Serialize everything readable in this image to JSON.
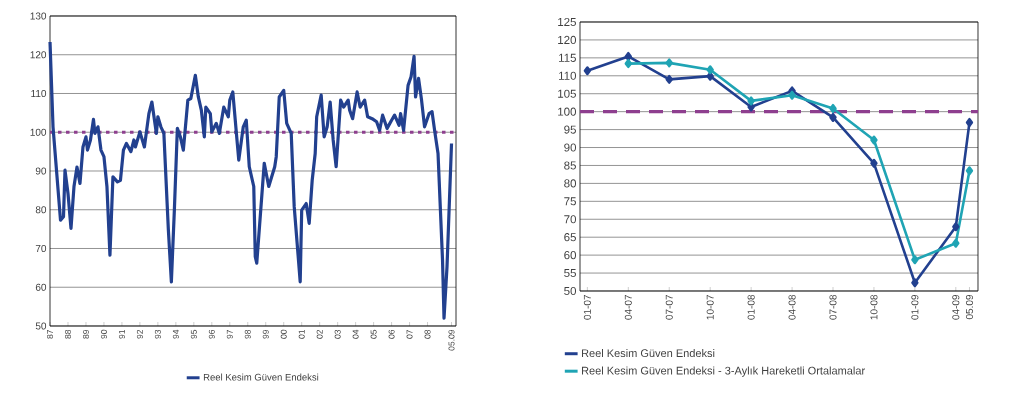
{
  "chart_data": [
    {
      "type": "line",
      "x": [
        "1987-01",
        "1987-03",
        "1987-08",
        "1987-10",
        "1987-11",
        "1988-01",
        "1988-03",
        "1988-05",
        "1988-07",
        "1988-09",
        "1988-11",
        "1989-01",
        "1989-02",
        "1989-04",
        "1989-06",
        "1989-07",
        "1989-09",
        "1989-11",
        "1990-01",
        "1990-03",
        "1990-05",
        "1990-07",
        "1990-10",
        "1990-12",
        "1991-02",
        "1991-04",
        "1991-07",
        "1991-09",
        "1991-10",
        "1992-01",
        "1992-04",
        "1992-07",
        "1992-09",
        "1992-12",
        "1993-01",
        "1993-03",
        "1993-05",
        "1993-08",
        "1993-10",
        "1993-12",
        "1994-02",
        "1994-04",
        "1994-06",
        "1994-09",
        "1994-11",
        "1995-02",
        "1995-04",
        "1995-06",
        "1995-08",
        "1995-09",
        "1995-12",
        "1996-01",
        "1996-04",
        "1996-06",
        "1996-09",
        "1996-12",
        "1997-01",
        "1997-03",
        "1997-06",
        "1997-07",
        "1997-10",
        "1997-12",
        "1998-02",
        "1998-05",
        "1998-06",
        "1998-07",
        "1998-12",
        "1999-03",
        "1999-07",
        "1999-08",
        "1999-10",
        "2000-01",
        "2000-03",
        "2000-06",
        "2000-08",
        "2000-12",
        "2001-01",
        "2001-04",
        "2001-06",
        "2001-08",
        "2001-10",
        "2001-11",
        "2002-02",
        "2002-04",
        "2002-06",
        "2002-08",
        "2002-10",
        "2002-12",
        "2003-03",
        "2003-05",
        "2003-08",
        "2003-09",
        "2003-11",
        "2004-02",
        "2004-04",
        "2004-07",
        "2004-09",
        "2004-12",
        "2005-03",
        "2005-05",
        "2005-07",
        "2005-10",
        "2006-01",
        "2006-03",
        "2006-06",
        "2006-07",
        "2006-09",
        "2006-12",
        "2007-02",
        "2007-04",
        "2007-05",
        "2007-07",
        "2007-09",
        "2007-11",
        "2008-02",
        "2008-04",
        "2008-06",
        "2008-08",
        "2008-11",
        "2008-12",
        "2009-02",
        "2009-05"
      ],
      "series": [
        {
          "name": "Reel Kesim Güven Endeksi",
          "color": "#22408f",
          "values": [
            123.3,
            101.4,
            77.3,
            78.2,
            90.2,
            84.2,
            75.2,
            86,
            91,
            86.8,
            96.2,
            98.8,
            95.4,
            98,
            103.3,
            99.7,
            101.4,
            95.4,
            93.7,
            86,
            68.3,
            88.5,
            87.2,
            87.6,
            95.4,
            97.1,
            95,
            98,
            96.2,
            100.1,
            96.2,
            104.8,
            107.8,
            99.7,
            104,
            101.4,
            99.7,
            74.8,
            61.4,
            79.9,
            101,
            98.8,
            95.4,
            108.3,
            108.7,
            114.7,
            109.1,
            105.7,
            98.8,
            106.5,
            104.8,
            100.1,
            102.3,
            99.7,
            106.5,
            104,
            108.3,
            110.4,
            97.1,
            92.8,
            101.4,
            103.1,
            91.1,
            86,
            67.9,
            66.2,
            92,
            86,
            91.1,
            93.7,
            109.1,
            110.8,
            102.3,
            99.7,
            80.8,
            61.4,
            79.9,
            81.6,
            76.5,
            87.6,
            94.5,
            104,
            109.6,
            98.8,
            101.4,
            107.8,
            98,
            91.1,
            108.3,
            106.5,
            108.3,
            105.7,
            103.5,
            110.4,
            106.5,
            108.3,
            104,
            103.5,
            102.7,
            100.5,
            104.4,
            101,
            103.1,
            104.4,
            101.8,
            104.8,
            100.5,
            112.1,
            114.3,
            119.6,
            109.1,
            113.9,
            108.3,
            101.4,
            104.8,
            105.3,
            99.7,
            94.5,
            67,
            52,
            65.3,
            97.1
          ]
        }
      ],
      "xlim": [
        "1987-01",
        "2009-08"
      ],
      "xticks": [
        {
          "value": "1987",
          "label": "87"
        },
        {
          "value": "1988",
          "label": "88"
        },
        {
          "value": "1989",
          "label": "89"
        },
        {
          "value": "1990",
          "label": "90"
        },
        {
          "value": "1991",
          "label": "91"
        },
        {
          "value": "1992",
          "label": "92"
        },
        {
          "value": "1993",
          "label": "93"
        },
        {
          "value": "1994",
          "label": "94"
        },
        {
          "value": "1995",
          "label": "95"
        },
        {
          "value": "1996",
          "label": "96"
        },
        {
          "value": "1997",
          "label": "97"
        },
        {
          "value": "1998",
          "label": "98"
        },
        {
          "value": "1999",
          "label": "99"
        },
        {
          "value": "2000",
          "label": "00"
        },
        {
          "value": "2001",
          "label": "01"
        },
        {
          "value": "2002",
          "label": "02"
        },
        {
          "value": "2003",
          "label": "03"
        },
        {
          "value": "2004",
          "label": "04"
        },
        {
          "value": "2005",
          "label": "05"
        },
        {
          "value": "2006",
          "label": "06"
        },
        {
          "value": "2007",
          "label": "07"
        },
        {
          "value": "2008",
          "label": "08"
        },
        {
          "value": "2009-05",
          "label": "05.09"
        }
      ],
      "ylim": [
        50,
        130
      ],
      "yticks": [
        50,
        60,
        70,
        80,
        90,
        100,
        110,
        120,
        130
      ],
      "grid": "y",
      "legend": "bottom",
      "marker": "none",
      "line_style": "solid",
      "ref_lines": [
        {
          "axis": "y",
          "value": 100,
          "color": "#8e3f8f",
          "line_style": "dotted"
        }
      ]
    },
    {
      "type": "line",
      "x": [
        "2007-01",
        "2007-04",
        "2007-07",
        "2007-10",
        "2008-01",
        "2008-04",
        "2008-07",
        "2008-10",
        "2009-01",
        "2009-04",
        "2009-05"
      ],
      "series": [
        {
          "name": "Reel Kesim Güven Endeksi",
          "color": "#22408f",
          "values": [
            111.4,
            115.4,
            109.0,
            109.9,
            101.3,
            105.8,
            98.4,
            85.6,
            52.3,
            67.9,
            97.0
          ]
        },
        {
          "name": "Reel Kesim Güven Endeksi - 3-Aylık Hareketli Ortalamalar",
          "color": "#1fa4b4",
          "values": [
            null,
            113.4,
            113.6,
            111.7,
            103.0,
            104.6,
            100.9,
            92.1,
            58.7,
            63.3,
            83.5
          ]
        }
      ],
      "xlim": [
        "2006-12-15",
        "2009-05-20"
      ],
      "xticks": [
        {
          "value": "2007-01",
          "label": "01-07"
        },
        {
          "value": "2007-04",
          "label": "04-07"
        },
        {
          "value": "2007-07",
          "label": "07-07"
        },
        {
          "value": "2007-10",
          "label": "10-07"
        },
        {
          "value": "2008-01",
          "label": "01-08"
        },
        {
          "value": "2008-04",
          "label": "04-08"
        },
        {
          "value": "2008-07",
          "label": "07-08"
        },
        {
          "value": "2008-10",
          "label": "10-08"
        },
        {
          "value": "2009-01",
          "label": "01-09"
        },
        {
          "value": "2009-04",
          "label": "04-09"
        },
        {
          "value": "2009-05",
          "label": "05.09"
        }
      ],
      "ylim": [
        50,
        125
      ],
      "yticks": [
        50,
        55,
        60,
        65,
        70,
        75,
        80,
        85,
        90,
        95,
        100,
        105,
        110,
        115,
        120,
        125
      ],
      "grid": "y",
      "legend": "bottom left",
      "marker": "diamond",
      "line_style": "solid",
      "ref_lines": [
        {
          "axis": "y",
          "value": 100,
          "color": "#8e3f8f",
          "line_style": "dashed"
        }
      ]
    }
  ]
}
